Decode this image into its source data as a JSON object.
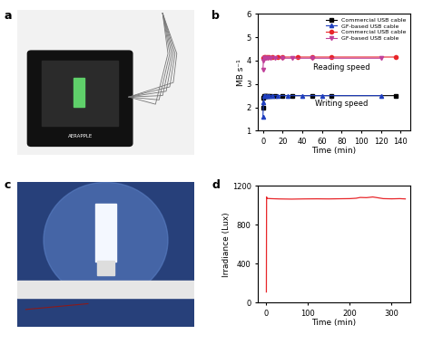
{
  "images": [
    {
      "label": "a",
      "text": "AERAPPLE"
    },
    {
      "label": "c"
    }
  ],
  "chart_data": [
    {
      "type": "line",
      "annotations": [
        "b",
        "Reading speed",
        "Writing speed"
      ],
      "x_label": "Time (min)",
      "y_label": "MB s⁻¹",
      "xlim": [
        -5,
        150
      ],
      "xticks": [
        0,
        20,
        40,
        60,
        80,
        100,
        120,
        140
      ],
      "ylim": [
        1,
        6
      ],
      "yticks": [
        1,
        2,
        3,
        4,
        5,
        6
      ],
      "legend": "upper right",
      "series": [
        {
          "name": "Commercial USB cable",
          "color": "#000000",
          "marker": "square",
          "line_style": "solid",
          "x": [
            0,
            0.5,
            1,
            2,
            3,
            5,
            8,
            12,
            20,
            30,
            50,
            70,
            135
          ],
          "values": [
            2.0,
            2.4,
            2.5,
            2.5,
            2.5,
            2.5,
            2.5,
            2.5,
            2.5,
            2.5,
            2.5,
            2.5,
            2.5
          ]
        },
        {
          "name": "GF-based USB cable",
          "color": "#1f3fbf",
          "marker": "triangle_up",
          "line_style": "solid",
          "x": [
            0,
            0.5,
            1,
            2,
            4,
            6,
            10,
            15,
            25,
            40,
            60,
            120
          ],
          "values": [
            1.6,
            2.2,
            2.5,
            2.5,
            2.5,
            2.5,
            2.5,
            2.5,
            2.5,
            2.5,
            2.5,
            2.5
          ]
        },
        {
          "name": "Commercial USB cable",
          "color": "#e8262a",
          "marker": "circle",
          "line_style": "solid",
          "x": [
            0,
            1,
            2,
            4,
            6,
            10,
            15,
            20,
            35,
            50,
            70,
            135
          ],
          "values": [
            4.1,
            4.15,
            4.15,
            4.15,
            4.15,
            4.15,
            4.15,
            4.15,
            4.15,
            4.15,
            4.15,
            4.15
          ]
        },
        {
          "name": "GF-based USB cable",
          "color": "#c0409a",
          "marker": "triangle_down",
          "line_style": "solid",
          "x": [
            0,
            0.5,
            1,
            2,
            3,
            5,
            8,
            12,
            20,
            30,
            50,
            120
          ],
          "values": [
            3.6,
            4.0,
            4.1,
            4.1,
            4.1,
            4.1,
            4.1,
            4.1,
            4.1,
            4.1,
            4.1,
            4.1
          ]
        }
      ]
    },
    {
      "type": "line",
      "annotations": [
        "d"
      ],
      "x_label": "Time (min)",
      "y_label": "Irradiance (Lux)",
      "xlim": [
        -20,
        345
      ],
      "xticks": [
        0,
        100,
        200,
        300
      ],
      "ylim": [
        0,
        1200
      ],
      "yticks": [
        0,
        400,
        800,
        1200
      ],
      "series": [
        {
          "color": "#e8262a",
          "line_style": "solid",
          "x": [
            0,
            0.5,
            1,
            3,
            10,
            30,
            60,
            90,
            120,
            150,
            180,
            200,
            215,
            225,
            240,
            255,
            270,
            280,
            300,
            320,
            333
          ],
          "values": [
            110,
            1085,
            1075,
            1070,
            1068,
            1065,
            1063,
            1065,
            1066,
            1065,
            1067,
            1068,
            1072,
            1080,
            1078,
            1085,
            1075,
            1068,
            1066,
            1068,
            1065
          ]
        }
      ]
    }
  ]
}
